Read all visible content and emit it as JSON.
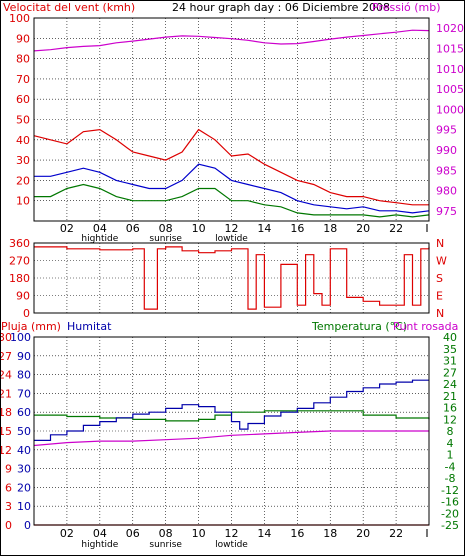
{
  "header": {
    "wind_title": "Velocitat del vent (kmh)",
    "main_title": "24 hour graph day : 06 Diciembre 2008",
    "pressure_title": "Pressió (mb)"
  },
  "colors": {
    "wind_gust": "#dd0000",
    "wind_avg": "#0000cc",
    "wind_low": "#007700",
    "pressure": "#cc00cc",
    "direction": "#dd0000",
    "rain": "#dd0000",
    "humidity": "#0000aa",
    "temperature": "#007700",
    "dewpoint": "#cc00cc",
    "grid": "#000000",
    "frame": "#000000"
  },
  "time_axis": {
    "hour_labels": [
      "02",
      "04",
      "06",
      "08",
      "10",
      "12",
      "14",
      "16",
      "18",
      "20",
      "22"
    ],
    "hour_positions": [
      2,
      4,
      6,
      8,
      10,
      12,
      14,
      16,
      18,
      20,
      22
    ],
    "end_label": "I",
    "events": [
      {
        "label": "hightide",
        "hour": 4
      },
      {
        "label": "sunrise",
        "hour": 8
      },
      {
        "label": "lowtide",
        "hour": 12
      }
    ]
  },
  "chart_data": [
    {
      "type": "line",
      "name": "wind-pressure",
      "x_range": [
        0,
        24
      ],
      "y_left": {
        "title": "Velocitat del vent (kmh)",
        "ticks": [
          10,
          20,
          30,
          40,
          50,
          60,
          70,
          80,
          90,
          100
        ],
        "ylim": [
          0,
          100
        ]
      },
      "y_right": {
        "title": "Pressió (mb)",
        "ticks": [
          975,
          980,
          985,
          990,
          995,
          1000,
          1005,
          1010,
          1015,
          1020
        ],
        "ylim": [
          972.5,
          1022.5
        ]
      },
      "series": [
        {
          "key": "gust",
          "axis": "left",
          "x": [
            0,
            1,
            2,
            3,
            4,
            5,
            6,
            7,
            8,
            9,
            10,
            11,
            12,
            13,
            14,
            15,
            16,
            17,
            18,
            19,
            20,
            21,
            22,
            23,
            24
          ],
          "y": [
            42,
            40,
            38,
            44,
            45,
            40,
            34,
            32,
            30,
            34,
            45,
            40,
            32,
            33,
            28,
            24,
            20,
            18,
            14,
            12,
            12,
            10,
            9,
            8,
            8
          ]
        },
        {
          "key": "average",
          "axis": "left",
          "x": [
            0,
            1,
            2,
            3,
            4,
            5,
            6,
            7,
            8,
            9,
            10,
            11,
            12,
            13,
            14,
            15,
            16,
            17,
            18,
            19,
            20,
            21,
            22,
            23,
            24
          ],
          "y": [
            22,
            22,
            24,
            26,
            24,
            20,
            18,
            16,
            16,
            20,
            28,
            26,
            20,
            18,
            16,
            14,
            10,
            8,
            7,
            6,
            7,
            5,
            5,
            4,
            5
          ]
        },
        {
          "key": "low",
          "axis": "left",
          "x": [
            0,
            1,
            2,
            3,
            4,
            5,
            6,
            7,
            8,
            9,
            10,
            11,
            12,
            13,
            14,
            15,
            16,
            17,
            18,
            19,
            20,
            21,
            22,
            23,
            24
          ],
          "y": [
            12,
            12,
            16,
            18,
            16,
            12,
            10,
            10,
            10,
            12,
            16,
            16,
            10,
            10,
            8,
            7,
            4,
            3,
            3,
            3,
            3,
            2,
            3,
            2,
            3
          ]
        },
        {
          "key": "pressure",
          "axis": "right",
          "x": [
            0,
            1,
            2,
            3,
            4,
            5,
            6,
            7,
            8,
            9,
            10,
            11,
            12,
            13,
            14,
            15,
            16,
            17,
            18,
            19,
            20,
            21,
            22,
            23,
            24
          ],
          "y": [
            1014.4,
            1014.7,
            1015.2,
            1015.5,
            1015.7,
            1016.4,
            1016.8,
            1017.3,
            1017.8,
            1018.1,
            1018.0,
            1017.7,
            1017.4,
            1017.0,
            1016.4,
            1016.1,
            1016.2,
            1016.7,
            1017.3,
            1017.8,
            1018.2,
            1018.6,
            1019.0,
            1019.5,
            1019.4
          ]
        }
      ]
    },
    {
      "type": "line",
      "name": "wind-direction",
      "x_range": [
        0,
        24
      ],
      "y_left": {
        "ticks": [
          0,
          90,
          180,
          270,
          360
        ],
        "ylim": [
          0,
          360
        ]
      },
      "y_right": {
        "ticks": [
          "N",
          "W",
          "S",
          "E",
          "N"
        ]
      },
      "series": [
        {
          "key": "direction",
          "x": [
            0,
            2,
            4,
            6,
            6.6,
            6.7,
            7.4,
            7.5,
            8,
            9,
            10,
            11,
            12,
            12.9,
            13,
            13.5,
            14,
            15,
            16,
            16.5,
            17,
            17.5,
            18,
            19,
            20,
            21,
            22,
            22.5,
            23,
            23.4,
            23.5,
            24
          ],
          "y": [
            340,
            330,
            325,
            330,
            330,
            20,
            20,
            330,
            340,
            320,
            310,
            320,
            330,
            330,
            20,
            300,
            30,
            250,
            40,
            300,
            100,
            40,
            330,
            80,
            60,
            40,
            40,
            300,
            40,
            40,
            330,
            340
          ]
        }
      ]
    },
    {
      "type": "line",
      "name": "rain-humidity-temperature",
      "x_range": [
        0,
        24
      ],
      "y_left": {
        "title": "Pluja (mm)",
        "ticks": [
          0,
          3,
          6,
          9,
          12,
          15,
          18,
          21,
          24,
          27,
          30
        ],
        "ylim": [
          0,
          30
        ]
      },
      "y_left_inner": {
        "title": "Humitat",
        "ticks": [
          0,
          10,
          20,
          30,
          40,
          50,
          60,
          70,
          80,
          90,
          100
        ],
        "ylim": [
          0,
          100
        ]
      },
      "y_right": {
        "title": "Temperatura (°C)",
        "ticks": [
          -25,
          -20,
          -16,
          -12,
          -8,
          -4,
          1,
          4,
          8,
          12,
          16,
          21,
          24,
          27,
          31,
          35,
          40
        ]
      },
      "y_right_title_extra": "Punt rosada",
      "right_ylim": [
        -25,
        40
      ],
      "series": [
        {
          "key": "rain",
          "axis": "left",
          "x": [
            0,
            24
          ],
          "y": [
            0,
            0
          ]
        },
        {
          "key": "humidity",
          "axis": "left_inner",
          "x": [
            0,
            1,
            2,
            3,
            4,
            5,
            6,
            7,
            8,
            9,
            10,
            11,
            12,
            12.5,
            13,
            14,
            15,
            16,
            17,
            18,
            19,
            20,
            21,
            22,
            23,
            24
          ],
          "y": [
            45,
            48,
            50,
            53,
            55,
            57,
            59,
            60,
            62,
            64,
            63,
            60,
            55,
            51,
            54,
            58,
            60,
            62,
            65,
            68,
            71,
            73,
            75,
            76,
            77,
            77
          ]
        },
        {
          "key": "temperature",
          "axis": "right",
          "x": [
            0,
            2,
            4,
            6,
            8,
            10,
            11,
            12,
            13,
            14,
            16,
            18,
            20,
            22,
            24
          ],
          "y": [
            13,
            12.5,
            12,
            11.5,
            11,
            11.5,
            13,
            14,
            14,
            14.5,
            14.5,
            14.5,
            13,
            12,
            11.5
          ]
        },
        {
          "key": "dewpoint",
          "axis": "right",
          "x": [
            0,
            2,
            4,
            6,
            8,
            10,
            12,
            14,
            16,
            18,
            20,
            22,
            24
          ],
          "y": [
            2.5,
            3.5,
            4.0,
            4.0,
            4.5,
            5.0,
            6.0,
            6.5,
            7.0,
            7.5,
            7.5,
            7.5,
            7.5
          ]
        }
      ]
    }
  ]
}
